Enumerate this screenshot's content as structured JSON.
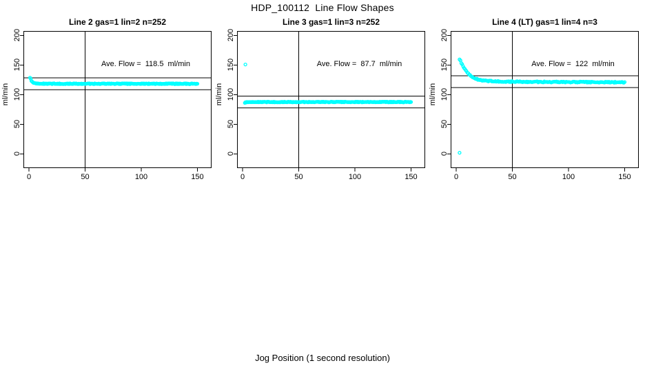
{
  "page": {
    "title": "HDP_100112  Line Flow Shapes",
    "x_axis_label": "Jog Position (1 second resolution)"
  },
  "colors": {
    "point": "#00ffff",
    "axis": "#000000",
    "text": "#000000",
    "background": "#ffffff"
  },
  "axes": {
    "x_ticks": [
      0,
      50,
      100,
      150
    ],
    "y_ticks": [
      0,
      50,
      100,
      150,
      200
    ],
    "y_label": "ml/min",
    "x_range_shown": [
      0,
      150
    ],
    "y_range_shown": [
      0,
      200
    ],
    "reference_vline_x": 50
  },
  "chart_data": [
    {
      "type": "scatter",
      "title": "Line 2 gas=1 lin=2 n=252",
      "annotation": "Ave. Flow =  118.5  ml/min",
      "ave_flow_ml_min": 118.5,
      "n": 252,
      "hlines": [
        128.5,
        108.5
      ],
      "series_keypoints": [
        [
          1,
          129
        ],
        [
          2,
          124
        ],
        [
          3,
          121.5
        ],
        [
          4,
          120.3
        ],
        [
          6,
          119.3
        ],
        [
          9,
          118.8
        ],
        [
          14,
          118.6
        ],
        [
          150,
          118.5
        ]
      ],
      "n_points": 252,
      "x_end": 150,
      "spread": 0.7,
      "outliers": []
    },
    {
      "type": "scatter",
      "title": "Line 3 gas=1 lin=3 n=252",
      "annotation": "Ave. Flow =  87.7  ml/min",
      "ave_flow_ml_min": 87.7,
      "n": 252,
      "hlines": [
        97.7,
        77.7
      ],
      "series_keypoints": [
        [
          2,
          86.5
        ],
        [
          4,
          87.5
        ],
        [
          8,
          87.7
        ],
        [
          150,
          87.7
        ]
      ],
      "n_points": 252,
      "x_end": 150,
      "spread": 0.6,
      "outliers": [
        [
          2.5,
          151
        ]
      ]
    },
    {
      "type": "scatter",
      "title": "Line 4 (LT) gas=1 lin=4 n=3",
      "annotation": "Ave. Flow =  122  ml/min",
      "ave_flow_ml_min": 122,
      "n": 3,
      "hlines": [
        132,
        112
      ],
      "series_keypoints": [
        [
          3,
          160
        ],
        [
          4,
          156
        ],
        [
          5,
          152
        ],
        [
          6,
          148.5
        ],
        [
          7,
          145.5
        ],
        [
          8,
          142.5
        ],
        [
          9,
          140
        ],
        [
          10,
          137.5
        ],
        [
          11,
          135.5
        ],
        [
          12,
          133.5
        ],
        [
          13,
          132
        ],
        [
          14,
          130.5
        ],
        [
          15,
          129.3
        ],
        [
          16,
          128.3
        ],
        [
          17,
          127.4
        ],
        [
          18,
          126.6
        ],
        [
          20,
          125.4
        ],
        [
          22,
          124.6
        ],
        [
          25,
          123.8
        ],
        [
          28,
          123.3
        ],
        [
          32,
          122.9
        ],
        [
          38,
          122.5
        ],
        [
          45,
          122.2
        ],
        [
          60,
          121.9
        ],
        [
          80,
          121.6
        ],
        [
          110,
          121.3
        ],
        [
          150,
          121
        ]
      ],
      "n_points": 190,
      "x_end": 150,
      "spread": 0.9,
      "outliers": [
        [
          3,
          2
        ]
      ]
    }
  ]
}
